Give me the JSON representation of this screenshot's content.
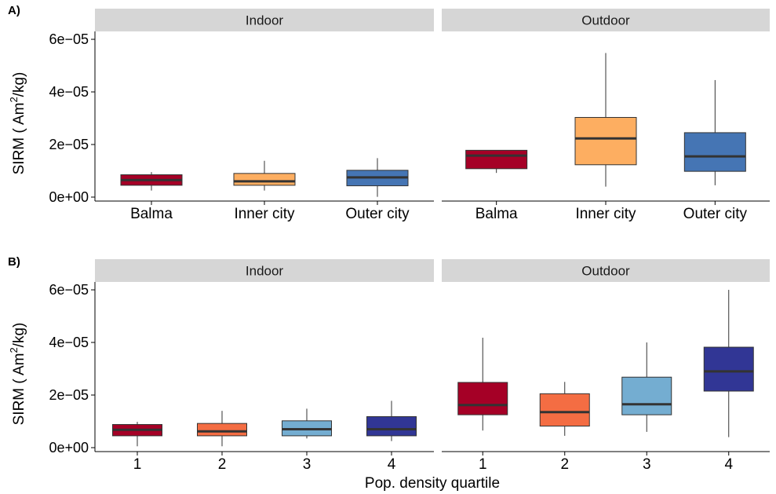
{
  "chart_data": [
    {
      "type": "boxplot",
      "panel_label": "A)",
      "ylabel": "SIRM ( Am",
      "ylabel_sup": "2",
      "ylabel_tail": "/kg)",
      "xlabel": "",
      "ylim": [
        -1.5e-06,
        6.3e-05
      ],
      "yticks": [
        0,
        2e-05,
        4e-05,
        6e-05
      ],
      "ytick_labels": [
        "0e+00",
        "2e−05",
        "4e−05",
        "6e−05"
      ],
      "categories": [
        "Balma",
        "Inner city",
        "Outer city"
      ],
      "colors": [
        "#a50026",
        "#fdae61",
        "#4575b4"
      ],
      "facets": [
        {
          "name": "Indoor",
          "boxes": [
            {
              "min": 2.5e-06,
              "q1": 4.5e-06,
              "median": 6.5e-06,
              "q3": 8.5e-06,
              "max": 9.5e-06
            },
            {
              "min": 2.5e-06,
              "q1": 4.5e-06,
              "median": 6e-06,
              "q3": 9e-06,
              "max": 1.38e-05
            },
            {
              "min": 1e-07,
              "q1": 4.3e-06,
              "median": 7.5e-06,
              "q3": 1.02e-05,
              "max": 1.48e-05
            }
          ]
        },
        {
          "name": "Outdoor",
          "boxes": [
            {
              "min": 9.2e-06,
              "q1": 1.08e-05,
              "median": 1.58e-05,
              "q3": 1.78e-05,
              "max": 1.78e-05
            },
            {
              "min": 4e-06,
              "q1": 1.23e-05,
              "median": 2.23e-05,
              "q3": 3.03e-05,
              "max": 5.48e-05
            },
            {
              "min": 4.5e-06,
              "q1": 9.8e-06,
              "median": 1.55e-05,
              "q3": 2.45e-05,
              "max": 4.45e-05
            }
          ]
        }
      ]
    },
    {
      "type": "boxplot",
      "panel_label": "B)",
      "ylabel": "SIRM ( Am",
      "ylabel_sup": "2",
      "ylabel_tail": "/kg)",
      "xlabel": "Pop. density quartile",
      "ylim": [
        -1.5e-06,
        6.3e-05
      ],
      "yticks": [
        0,
        2e-05,
        4e-05,
        6e-05
      ],
      "ytick_labels": [
        "0e+00",
        "2e−05",
        "4e−05",
        "6e−05"
      ],
      "categories": [
        "1",
        "2",
        "3",
        "4"
      ],
      "colors": [
        "#a50026",
        "#f46d43",
        "#74add1",
        "#313695"
      ],
      "facets": [
        {
          "name": "Indoor",
          "boxes": [
            {
              "min": 5e-07,
              "q1": 4.5e-06,
              "median": 6.8e-06,
              "q3": 8.8e-06,
              "max": 9.8e-06
            },
            {
              "min": 5e-07,
              "q1": 4.5e-06,
              "median": 6.2e-06,
              "q3": 9.2e-06,
              "max": 1.4e-05
            },
            {
              "min": 3.5e-06,
              "q1": 4.5e-06,
              "median": 7e-06,
              "q3": 1.02e-05,
              "max": 1.48e-05
            },
            {
              "min": 2.5e-06,
              "q1": 4.5e-06,
              "median": 7e-06,
              "q3": 1.18e-05,
              "max": 1.78e-05
            }
          ]
        },
        {
          "name": "Outdoor",
          "boxes": [
            {
              "min": 6.5e-06,
              "q1": 1.25e-05,
              "median": 1.62e-05,
              "q3": 2.48e-05,
              "max": 4.18e-05
            },
            {
              "min": 4.5e-06,
              "q1": 8.2e-06,
              "median": 1.35e-05,
              "q3": 2.05e-05,
              "max": 2.5e-05
            },
            {
              "min": 6e-06,
              "q1": 1.25e-05,
              "median": 1.65e-05,
              "q3": 2.68e-05,
              "max": 4e-05
            },
            {
              "min": 4e-06,
              "q1": 2.15e-05,
              "median": 2.9e-05,
              "q3": 3.82e-05,
              "max": 6e-05
            }
          ]
        }
      ]
    }
  ]
}
